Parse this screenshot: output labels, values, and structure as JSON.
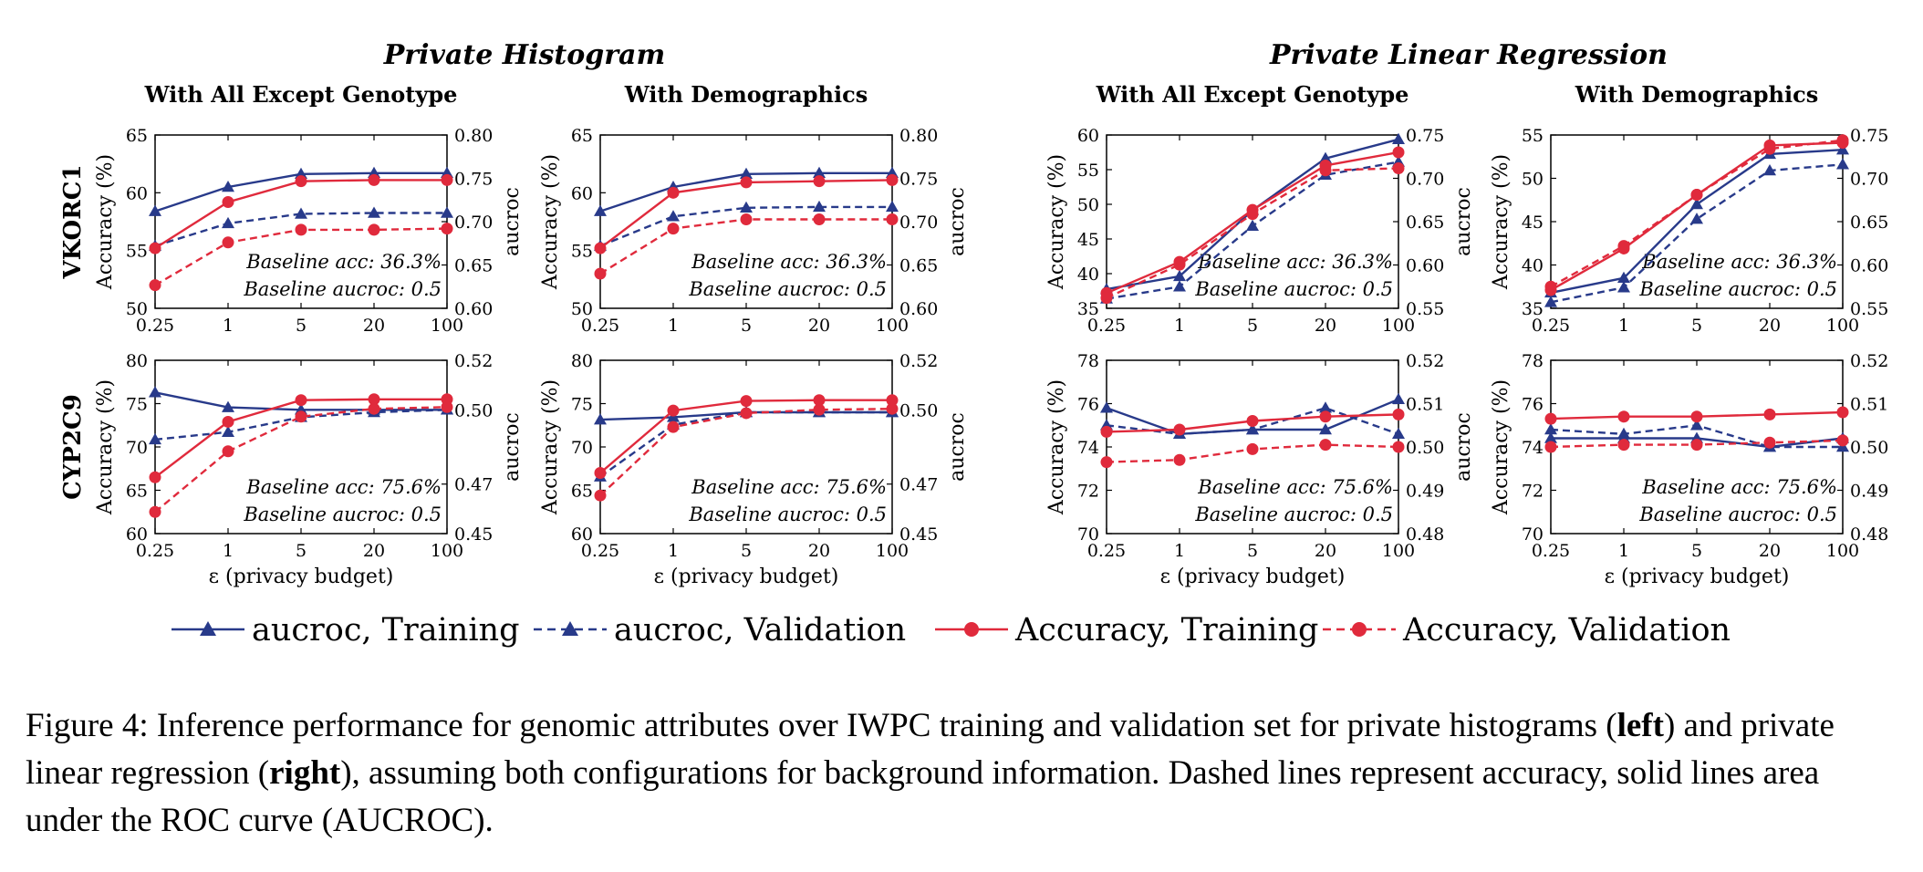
{
  "figure": {
    "groups": [
      {
        "title": "Private Histogram"
      },
      {
        "title": "Private Linear Regression"
      }
    ],
    "legend": [
      {
        "label": "aucroc, Training",
        "color": "#283a8a",
        "dashed": false,
        "marker": "triangle"
      },
      {
        "label": "aucroc, Validation",
        "color": "#283a8a",
        "dashed": true,
        "marker": "triangle"
      },
      {
        "label": "Accuracy, Training",
        "color": "#e02a3c",
        "dashed": false,
        "marker": "circle"
      },
      {
        "label": "Accuracy, Validation",
        "color": "#e02a3c",
        "dashed": true,
        "marker": "circle"
      }
    ],
    "caption": {
      "prefix": "Figure 4: Inference performance for genomic attributes over IWPC training and validation set for private histograms (",
      "bold1": "left",
      "mid": ") and private linear regression (",
      "bold2": "right",
      "suffix": "), assuming both configurations for background information.  Dashed lines represent accuracy, solid lines area under the ROC curve (AUCROC)."
    }
  },
  "chart_data": [
    {
      "type": "line",
      "group": "Private Histogram",
      "row_label": "VKORC1",
      "title": "With All Except Genotype",
      "categories": [
        "0.25",
        "1",
        "5",
        "20",
        "100"
      ],
      "xlabel": "",
      "ylabel": "Accuracy (%)",
      "y2label": "aucroc",
      "ylim": [
        50,
        65
      ],
      "yticks": [
        "50",
        "55",
        "60",
        "65"
      ],
      "y2lim": [
        0.6,
        0.8
      ],
      "y2ticks": [
        "0.60",
        "0.65",
        "0.70",
        "0.75",
        "0.80"
      ],
      "annotations": [
        "Baseline acc: 36.3%",
        "Baseline aucroc: 0.5"
      ],
      "series": [
        {
          "name": "aucroc, Training",
          "axis": "right",
          "values": [
            0.712,
            0.74,
            0.755,
            0.756,
            0.756
          ]
        },
        {
          "name": "aucroc, Validation",
          "axis": "right",
          "values": [
            0.672,
            0.698,
            0.709,
            0.71,
            0.71
          ]
        },
        {
          "name": "Accuracy, Training",
          "axis": "left",
          "values": [
            55.2,
            59.2,
            61.0,
            61.1,
            61.1
          ]
        },
        {
          "name": "Accuracy, Validation",
          "axis": "left",
          "values": [
            52.0,
            55.7,
            56.8,
            56.8,
            56.9
          ]
        }
      ]
    },
    {
      "type": "line",
      "group": "Private Histogram",
      "row_label": "VKORC1",
      "title": "With Demographics",
      "categories": [
        "0.25",
        "1",
        "5",
        "20",
        "100"
      ],
      "xlabel": "",
      "ylabel": "Accuracy (%)",
      "y2label": "aucroc",
      "ylim": [
        50,
        65
      ],
      "yticks": [
        "50",
        "55",
        "60",
        "65"
      ],
      "y2lim": [
        0.6,
        0.8
      ],
      "y2ticks": [
        "0.60",
        "0.65",
        "0.70",
        "0.75",
        "0.80"
      ],
      "annotations": [
        "Baseline acc: 36.3%",
        "Baseline aucroc: 0.5"
      ],
      "series": [
        {
          "name": "aucroc, Training",
          "axis": "right",
          "values": [
            0.712,
            0.74,
            0.755,
            0.756,
            0.756
          ]
        },
        {
          "name": "aucroc, Validation",
          "axis": "right",
          "values": [
            0.672,
            0.706,
            0.716,
            0.717,
            0.717
          ]
        },
        {
          "name": "Accuracy, Training",
          "axis": "left",
          "values": [
            55.2,
            60.0,
            60.9,
            61.0,
            61.1
          ]
        },
        {
          "name": "Accuracy, Validation",
          "axis": "left",
          "values": [
            53.0,
            56.9,
            57.7,
            57.7,
            57.7
          ]
        }
      ]
    },
    {
      "type": "line",
      "group": "Private Histogram",
      "row_label": "CYP2C9",
      "title": "",
      "categories": [
        "0.25",
        "1",
        "5",
        "20",
        "100"
      ],
      "xlabel": "ε (privacy budget)",
      "ylabel": "Accuracy (%)",
      "y2label": "aucroc",
      "ylim": [
        60,
        80
      ],
      "yticks": [
        "60",
        "65",
        "70",
        "75",
        "80"
      ],
      "y2lim": [
        0.45,
        0.52
      ],
      "y2ticks": [
        "0.45",
        "0.47",
        "0.50",
        "0.52"
      ],
      "annotations": [
        "Baseline acc: 75.6%",
        "Baseline aucroc: 0.5"
      ],
      "series": [
        {
          "name": "aucroc, Training",
          "axis": "right",
          "values": [
            0.507,
            0.501,
            0.5,
            0.5,
            0.5
          ]
        },
        {
          "name": "aucroc, Validation",
          "axis": "right",
          "values": [
            0.488,
            0.491,
            0.497,
            0.499,
            0.5
          ]
        },
        {
          "name": "Accuracy, Training",
          "axis": "left",
          "values": [
            66.5,
            72.9,
            75.4,
            75.5,
            75.5
          ]
        },
        {
          "name": "Accuracy, Validation",
          "axis": "left",
          "values": [
            62.5,
            69.5,
            73.5,
            74.4,
            74.6
          ]
        }
      ]
    },
    {
      "type": "line",
      "group": "Private Histogram",
      "row_label": "CYP2C9",
      "title": "",
      "categories": [
        "0.25",
        "1",
        "5",
        "20",
        "100"
      ],
      "xlabel": "ε (privacy budget)",
      "ylabel": "Accuracy (%)",
      "y2label": "aucroc",
      "ylim": [
        60,
        80
      ],
      "yticks": [
        "60",
        "65",
        "70",
        "75",
        "80"
      ],
      "y2lim": [
        0.45,
        0.52
      ],
      "y2ticks": [
        "0.45",
        "0.47",
        "0.50",
        "0.52"
      ],
      "annotations": [
        "Baseline acc: 75.6%",
        "Baseline aucroc: 0.5"
      ],
      "series": [
        {
          "name": "aucroc, Training",
          "axis": "right",
          "values": [
            0.496,
            0.497,
            0.499,
            0.499,
            0.499
          ]
        },
        {
          "name": "aucroc, Validation",
          "axis": "right",
          "values": [
            0.473,
            0.494,
            0.499,
            0.499,
            0.499
          ]
        },
        {
          "name": "Accuracy, Training",
          "axis": "left",
          "values": [
            67.0,
            74.2,
            75.3,
            75.4,
            75.4
          ]
        },
        {
          "name": "Accuracy, Validation",
          "axis": "left",
          "values": [
            64.4,
            72.3,
            73.9,
            74.3,
            74.4
          ]
        }
      ]
    },
    {
      "type": "line",
      "group": "Private Linear Regression",
      "row_label": "VKORC1",
      "title": "With All Except Genotype",
      "categories": [
        "0.25",
        "1",
        "5",
        "20",
        "100"
      ],
      "xlabel": "",
      "ylabel": "Accuracy (%)",
      "y2label": "aucroc",
      "ylim": [
        35,
        60
      ],
      "yticks": [
        "35",
        "40",
        "45",
        "50",
        "55",
        "60"
      ],
      "y2lim": [
        0.55,
        0.75
      ],
      "y2ticks": [
        "0.55",
        "0.60",
        "0.65",
        "0.70",
        "0.75"
      ],
      "annotations": [
        "Baseline acc: 36.3%",
        "Baseline aucroc: 0.5"
      ],
      "series": [
        {
          "name": "aucroc, Training",
          "axis": "right",
          "values": [
            0.572,
            0.587,
            0.663,
            0.723,
            0.745
          ]
        },
        {
          "name": "aucroc, Validation",
          "axis": "right",
          "values": [
            0.561,
            0.575,
            0.645,
            0.704,
            0.719
          ]
        },
        {
          "name": "Accuracy, Training",
          "axis": "left",
          "values": [
            37.2,
            41.7,
            49.2,
            55.6,
            57.5
          ]
        },
        {
          "name": "Accuracy, Validation",
          "axis": "left",
          "values": [
            36.5,
            41.3,
            48.6,
            54.9,
            55.2
          ]
        }
      ]
    },
    {
      "type": "line",
      "group": "Private Linear Regression",
      "row_label": "VKORC1",
      "title": "With Demographics",
      "categories": [
        "0.25",
        "1",
        "5",
        "20",
        "100"
      ],
      "xlabel": "",
      "ylabel": "Accuracy (%)",
      "y2label": "",
      "ylim": [
        35,
        55
      ],
      "yticks": [
        "35",
        "40",
        "45",
        "50",
        "55"
      ],
      "y2lim": [
        0.55,
        0.75
      ],
      "y2ticks": [
        "0.55",
        "0.60",
        "0.65",
        "0.70",
        "0.75"
      ],
      "annotations": [
        "Baseline acc: 36.3%",
        "Baseline aucroc: 0.5"
      ],
      "series": [
        {
          "name": "aucroc, Training",
          "axis": "right",
          "values": [
            0.568,
            0.585,
            0.67,
            0.728,
            0.733
          ]
        },
        {
          "name": "aucroc, Validation",
          "axis": "right",
          "values": [
            0.557,
            0.574,
            0.653,
            0.709,
            0.716
          ]
        },
        {
          "name": "Accuracy, Training",
          "axis": "left",
          "values": [
            37.1,
            41.9,
            48.1,
            53.8,
            54.1
          ]
        },
        {
          "name": "Accuracy, Validation",
          "axis": "left",
          "values": [
            37.5,
            42.2,
            48.1,
            53.4,
            54.4
          ]
        }
      ]
    },
    {
      "type": "line",
      "group": "Private Linear Regression",
      "row_label": "CYP2C9",
      "title": "",
      "categories": [
        "0.25",
        "1",
        "5",
        "20",
        "100"
      ],
      "xlabel": "ε (privacy budget)",
      "ylabel": "Accuracy (%)",
      "y2label": "aucroc",
      "ylim": [
        70,
        78
      ],
      "yticks": [
        "70",
        "72",
        "74",
        "76",
        "78"
      ],
      "y2lim": [
        0.48,
        0.52
      ],
      "y2ticks": [
        "0.48",
        "0.49",
        "0.50",
        "0.51",
        "0.52"
      ],
      "annotations": [
        "Baseline acc: 75.6%",
        "Baseline aucroc: 0.5"
      ],
      "series": [
        {
          "name": "aucroc, Training",
          "axis": "right",
          "values": [
            0.509,
            0.503,
            0.504,
            0.504,
            0.511
          ]
        },
        {
          "name": "aucroc, Validation",
          "axis": "right",
          "values": [
            0.505,
            0.503,
            0.504,
            0.509,
            0.503
          ]
        },
        {
          "name": "Accuracy, Training",
          "axis": "left",
          "values": [
            74.7,
            74.8,
            75.2,
            75.4,
            75.5
          ]
        },
        {
          "name": "Accuracy, Validation",
          "axis": "left",
          "values": [
            73.3,
            73.4,
            73.9,
            74.1,
            74.0
          ]
        }
      ]
    },
    {
      "type": "line",
      "group": "Private Linear Regression",
      "row_label": "CYP2C9",
      "title": "",
      "categories": [
        "0.25",
        "1",
        "5",
        "20",
        "100"
      ],
      "xlabel": "ε (privacy budget)",
      "ylabel": "Accuracy (%)",
      "y2label": "",
      "ylim": [
        70,
        78
      ],
      "yticks": [
        "70",
        "72",
        "74",
        "76",
        "78"
      ],
      "y2lim": [
        0.48,
        0.52
      ],
      "y2ticks": [
        "0.48",
        "0.49",
        "0.50",
        "0.51",
        "0.52"
      ],
      "annotations": [
        "Baseline acc: 75.6%",
        "Baseline aucroc: 0.5"
      ],
      "series": [
        {
          "name": "aucroc, Training",
          "axis": "right",
          "values": [
            0.502,
            0.502,
            0.502,
            0.5,
            0.502
          ]
        },
        {
          "name": "aucroc, Validation",
          "axis": "right",
          "values": [
            0.504,
            0.503,
            0.505,
            0.5,
            0.5
          ]
        },
        {
          "name": "Accuracy, Training",
          "axis": "left",
          "values": [
            75.3,
            75.4,
            75.4,
            75.5,
            75.6
          ]
        },
        {
          "name": "Accuracy, Validation",
          "axis": "left",
          "values": [
            74.0,
            74.1,
            74.1,
            74.2,
            74.3
          ]
        }
      ]
    }
  ]
}
